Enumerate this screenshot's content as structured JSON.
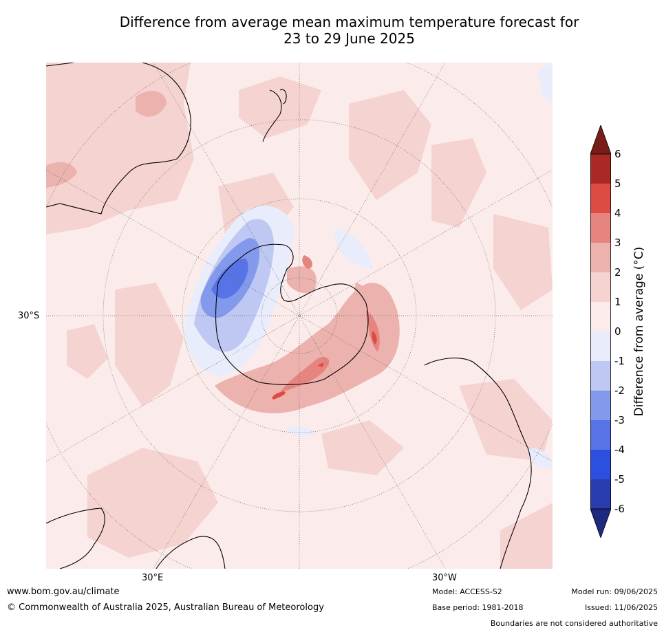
{
  "title": {
    "line1": "Difference from average mean maximum temperature forecast for",
    "line2": "23 to 29 June 2025"
  },
  "map": {
    "lat_label": "30°S",
    "lon_labels": [
      "30°E",
      "30°W"
    ]
  },
  "colorbar": {
    "label": "Difference from average (°C)",
    "ticks": [
      "6",
      "5",
      "4",
      "3",
      "2",
      "1",
      "0",
      "-1",
      "-2",
      "-3",
      "-4",
      "-5",
      "-6"
    ],
    "colors": [
      "#2a3db0",
      "#2c4fe0",
      "#5773e6",
      "#8399ec",
      "#bfc8f2",
      "#e9ecfb",
      "#fbeceb",
      "#f4d3d1",
      "#ecb2ad",
      "#e68480",
      "#dc4c42",
      "#a92a25"
    ],
    "over_color": "#7a1c18",
    "under_color": "#1d2a80"
  },
  "footer": {
    "website": "www.bom.gov.au/climate",
    "copyright": "© Commonwealth of Australia 2025, Australian Bureau of Meteorology",
    "model": "Model: ACCESS-S2",
    "base_period": "Base period: 1981-2018",
    "model_run": "Model run: 09/06/2025",
    "issued": "Issued: 11/06/2025",
    "disclaimer": "Boundaries are not considered authoritative"
  }
}
